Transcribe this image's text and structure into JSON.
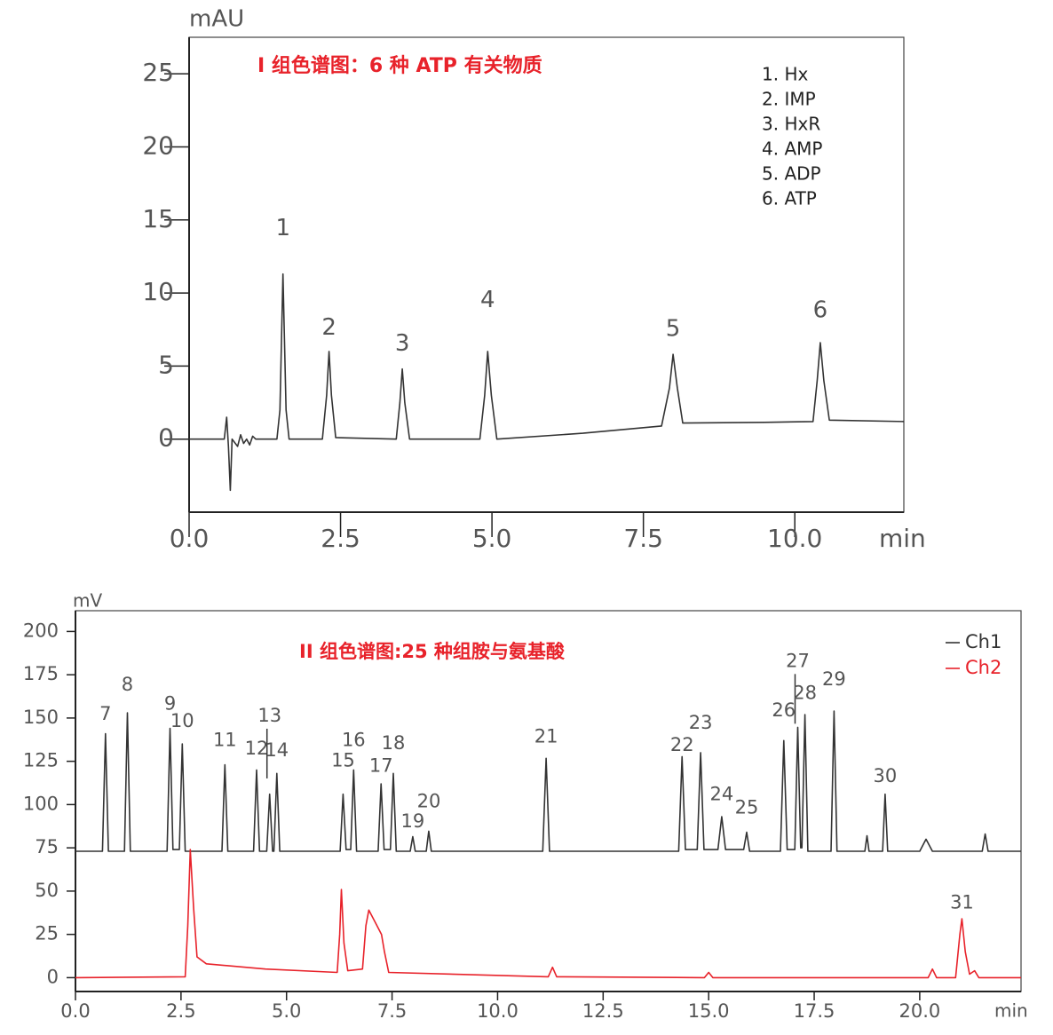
{
  "chart_data": [
    {
      "type": "line",
      "title": "I 组色谱图：6 种 ATP 有关物质",
      "y_label": "mAU",
      "x_label": "min",
      "xlim": [
        0,
        11.8
      ],
      "ylim": [
        -5,
        27.5
      ],
      "xticks": [
        {
          "value": 0,
          "label": "0.0"
        },
        2.5,
        {
          "value": 5,
          "label": "5.0"
        },
        7.5,
        {
          "value": 10,
          "label": "10.0"
        }
      ],
      "yticks": [
        0,
        5,
        10,
        15,
        20,
        25
      ],
      "series": [
        {
          "color": "#333333",
          "x": [
            0,
            0.58,
            0.62,
            0.65,
            0.68,
            0.71,
            0.8,
            0.85,
            0.9,
            0.95,
            1.0,
            1.05,
            1.1,
            1.45,
            1.5,
            1.55,
            1.6,
            1.65,
            2.2,
            2.27,
            2.31,
            2.35,
            2.42,
            3.42,
            3.48,
            3.52,
            3.56,
            3.64,
            4.8,
            4.88,
            4.93,
            4.99,
            5.08,
            6.5,
            7.8,
            7.93,
            7.99,
            8.06,
            8.15,
            9.5,
            10.3,
            10.37,
            10.42,
            10.48,
            10.57,
            11.8
          ],
          "values": [
            0,
            0,
            1.5,
            -0.5,
            -3.5,
            0,
            -0.5,
            0.3,
            -0.3,
            0,
            -0.4,
            0.2,
            0,
            0,
            2,
            11.3,
            2,
            0,
            0,
            3,
            6.0,
            3,
            0.1,
            0,
            2.5,
            4.8,
            2.5,
            0,
            0,
            3,
            6.0,
            3,
            0,
            0.4,
            0.9,
            3.5,
            5.8,
            3.5,
            1.1,
            1.15,
            1.2,
            4,
            6.6,
            4,
            1.3,
            1.2
          ]
        }
      ],
      "annotations": [
        {
          "text": "1",
          "x": 1.55,
          "y": 14.4
        },
        {
          "text": "2",
          "x": 2.31,
          "y": 7.6
        },
        {
          "text": "3",
          "x": 3.52,
          "y": 6.5
        },
        {
          "text": "4",
          "x": 4.93,
          "y": 9.5
        },
        {
          "text": "5",
          "x": 7.99,
          "y": 7.5
        },
        {
          "text": "6",
          "x": 10.42,
          "y": 8.8
        }
      ],
      "legend_text": [
        "1. Hx",
        "2. IMP",
        "3. HxR",
        "4. AMP",
        "5. ADP",
        "6. ATP"
      ]
    },
    {
      "type": "line",
      "title": "II 组色谱图:25 种组胺与氨基酸",
      "y_label": "mV",
      "x_label": "min",
      "xlim": [
        0,
        22.4
      ],
      "ylim": [
        -8,
        212
      ],
      "xticks": [
        {
          "value": 0,
          "label": "0.0"
        },
        2.5,
        {
          "value": 5,
          "label": "5.0"
        },
        7.5,
        {
          "value": 10,
          "label": "10.0"
        },
        12.5,
        {
          "value": 15,
          "label": "15.0"
        },
        17.5,
        {
          "value": 20,
          "label": "20.0"
        }
      ],
      "yticks": [
        0,
        25,
        50,
        75,
        100,
        125,
        150,
        175,
        200
      ],
      "legend": "upper right",
      "series": [
        {
          "name": "Ch1",
          "color": "#333333",
          "x": [
            0,
            0.64,
            0.71,
            0.78,
            1.16,
            1.23,
            1.3,
            2.17,
            2.24,
            2.31,
            2.46,
            2.53,
            2.6,
            3.47,
            3.54,
            3.61,
            4.22,
            4.29,
            4.36,
            4.53,
            4.6,
            4.67,
            4.7,
            4.77,
            4.84,
            6.27,
            6.34,
            6.41,
            6.52,
            6.59,
            6.66,
            7.17,
            7.24,
            7.31,
            7.46,
            7.53,
            7.6,
            7.93,
            7.99,
            8.05,
            8.31,
            8.37,
            8.43,
            11.07,
            11.15,
            11.23,
            14.29,
            14.37,
            14.45,
            14.73,
            14.81,
            14.89,
            15.22,
            15.31,
            15.4,
            15.83,
            15.9,
            15.97,
            16.7,
            16.78,
            16.86,
            17.04,
            17.11,
            17.18,
            17.21,
            17.28,
            17.35,
            17.9,
            17.97,
            18.04,
            18.7,
            18.75,
            18.8,
            19.12,
            19.18,
            19.24,
            20.0,
            20.15,
            20.3,
            21.48,
            21.55,
            21.62,
            22.4
          ],
          "values": [
            73,
            73,
            141,
            73,
            73,
            153,
            73,
            73,
            144,
            74,
            74,
            135,
            73,
            73,
            123,
            73,
            73,
            120,
            73,
            73,
            106,
            73,
            73,
            118,
            73,
            73,
            106,
            74,
            74,
            120,
            73,
            73,
            112,
            74,
            74,
            118,
            73,
            73,
            81.5,
            73,
            73,
            84.6,
            73,
            73,
            126.7,
            73,
            73,
            127.7,
            74,
            74,
            130,
            74,
            74,
            93,
            74,
            74,
            84,
            73,
            73,
            137,
            74,
            74,
            144.6,
            75,
            75,
            152,
            73,
            73,
            154,
            73,
            73,
            82,
            73,
            73,
            106,
            73,
            73,
            80,
            73,
            73,
            83,
            73,
            73
          ]
        },
        {
          "name": "Ch2",
          "color": "#e8222a",
          "x": [
            0,
            2.6,
            2.66,
            2.72,
            2.8,
            2.88,
            3.1,
            4.5,
            6.2,
            6.26,
            6.3,
            6.36,
            6.45,
            6.8,
            6.88,
            6.95,
            7.1,
            7.25,
            7.32,
            7.42,
            11.2,
            11.3,
            11.4,
            14.9,
            15.0,
            15.1,
            20.2,
            20.3,
            20.4,
            20.85,
            20.95,
            21.0,
            21.08,
            21.18,
            21.3,
            21.4,
            22.4
          ],
          "values": [
            0,
            0.5,
            30,
            74,
            40,
            12,
            8,
            5,
            3,
            25,
            51,
            20,
            4,
            5,
            30,
            39,
            32,
            25,
            15,
            3,
            0.5,
            6,
            0.5,
            0,
            3,
            0,
            0,
            5,
            0,
            0,
            25,
            34,
            15,
            2,
            4,
            0,
            0
          ]
        }
      ],
      "annotations": [
        {
          "text": "7",
          "x": 0.71,
          "y": 152
        },
        {
          "text": "8",
          "x": 1.23,
          "y": 169
        },
        {
          "text": "9",
          "x": 2.24,
          "y": 158
        },
        {
          "text": "10",
          "x": 2.53,
          "y": 148
        },
        {
          "text": "11",
          "x": 3.54,
          "y": 137
        },
        {
          "text": "12",
          "x": 4.29,
          "y": 132
        },
        {
          "text": "13",
          "x": 4.6,
          "y": 151,
          "leader": true
        },
        {
          "text": "14",
          "x": 4.77,
          "y": 131
        },
        {
          "text": "15",
          "x": 6.34,
          "y": 125
        },
        {
          "text": "16",
          "x": 6.59,
          "y": 137
        },
        {
          "text": "17",
          "x": 7.24,
          "y": 122
        },
        {
          "text": "18",
          "x": 7.53,
          "y": 135
        },
        {
          "text": "19",
          "x": 7.99,
          "y": 90
        },
        {
          "text": "20",
          "x": 8.37,
          "y": 101.5
        },
        {
          "text": "21",
          "x": 11.15,
          "y": 139
        },
        {
          "text": "22",
          "x": 14.37,
          "y": 134
        },
        {
          "text": "23",
          "x": 14.81,
          "y": 147
        },
        {
          "text": "24",
          "x": 15.31,
          "y": 105.6
        },
        {
          "text": "25",
          "x": 15.9,
          "y": 98
        },
        {
          "text": "26",
          "x": 16.78,
          "y": 154
        },
        {
          "text": "27",
          "x": 17.11,
          "y": 182.6,
          "leader": true
        },
        {
          "text": "28",
          "x": 17.28,
          "y": 164
        },
        {
          "text": "29",
          "x": 17.97,
          "y": 172
        },
        {
          "text": "30",
          "x": 19.18,
          "y": 116
        },
        {
          "text": "31",
          "x": 21.0,
          "y": 43
        }
      ]
    }
  ]
}
